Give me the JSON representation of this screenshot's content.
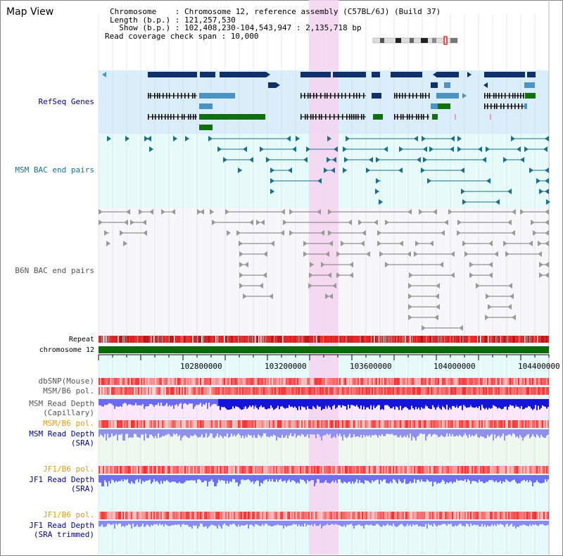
{
  "title": "Map View",
  "info": {
    "chromosome": "Chromosome    : Chromosome 12, reference assembly (C57BL/6J) (Build 37)",
    "length": "Length (b.p.) : 121,257,530",
    "show": "  Show (b.p.) : 102,408,230-104,543,947 : 2,135,718 bp",
    "span": "Read coverage check span : 10,000"
  },
  "tracks": {
    "refseq": "RefSeq Genes",
    "msm_bac": "MSM BAC end pairs",
    "b6n_bac": "B6N BAC end pairs",
    "repeat": "Repeat",
    "chromosome": "chromosome 12",
    "dbsnp": "dbSNP(Mouse)",
    "msm_b6_pol": "MSM/B6 pol.",
    "msm_depth_cap_1": "MSM Read Depth",
    "msm_depth_cap_2": "(Capillary)",
    "msm_b6_pol_2": "MSM/B6 pol.",
    "msm_depth_sra_1": "MSM Read Depth",
    "msm_depth_sra_2": "(SRA)",
    "jf1_b6_pol": "JF1/B6 pol.",
    "jf1_depth_sra_1": "JF1 Read Depth",
    "jf1_depth_sra_2": "(SRA)",
    "jf1_b6_pol_2": "JF1/B6 pol.",
    "jf1_depth_trim_1": "JF1 Read Depth",
    "jf1_depth_trim_2": "(SRA trimmed)"
  },
  "axis_ticks": [
    "102800000",
    "103200000",
    "103600000",
    "104000000",
    "104400000"
  ],
  "colors": {
    "refseq_bg": "#d9eefa",
    "bac_bg": "#e6fafa",
    "b6n_bg": "#f7f7f9",
    "highlight": "#f5d3f0",
    "gene_dark": "#10306b",
    "gene_mid": "#4a93c3",
    "gene_green": "#107010",
    "msm_pair": "#1a6f8a",
    "b6n_pair": "#777777",
    "chromosome_bar": "#0b6b0b",
    "depth_blue": "#2020e0",
    "depth_light": "#8080f0",
    "label_blue": "#00008b",
    "label_orange": "#e89a0a",
    "label_teal": "#1a6f8a"
  }
}
